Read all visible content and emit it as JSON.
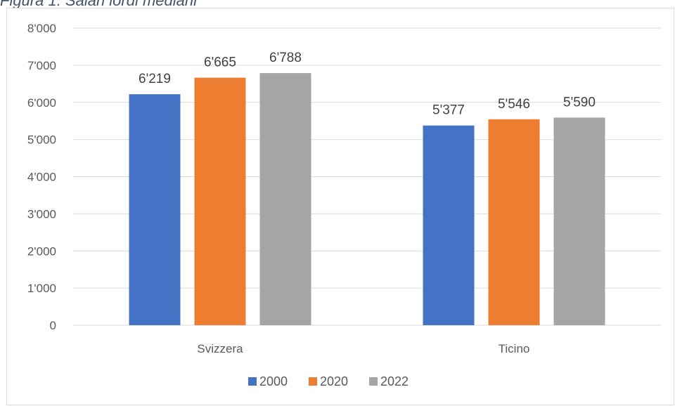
{
  "caption": "Figura 1: Salari lordi mediani",
  "colors": {
    "2000": "#4472c4",
    "2020": "#ed7d31",
    "2022": "#a5a5a5",
    "grid": "#d9d9d9"
  },
  "chart_data": {
    "type": "bar",
    "title": "",
    "xlabel": "",
    "ylabel": "",
    "categories": [
      "Svizzera",
      "Ticino"
    ],
    "series": [
      {
        "name": "2000",
        "values": [
          6219,
          5377
        ],
        "labels": [
          "6'219",
          "5'377"
        ]
      },
      {
        "name": "2020",
        "values": [
          6665,
          5546
        ],
        "labels": [
          "6'665",
          "5'546"
        ]
      },
      {
        "name": "2022",
        "values": [
          6788,
          5590
        ],
        "labels": [
          "6'788",
          "5'590"
        ]
      }
    ],
    "yticks": [
      0,
      1000,
      2000,
      3000,
      4000,
      5000,
      6000,
      7000,
      8000
    ],
    "ytick_labels": [
      "0",
      "1'000",
      "2'000",
      "3'000",
      "4'000",
      "5'000",
      "6'000",
      "7'000",
      "8'000"
    ],
    "ylim": [
      0,
      8000
    ],
    "grid": true,
    "legend": "bottom-center"
  }
}
